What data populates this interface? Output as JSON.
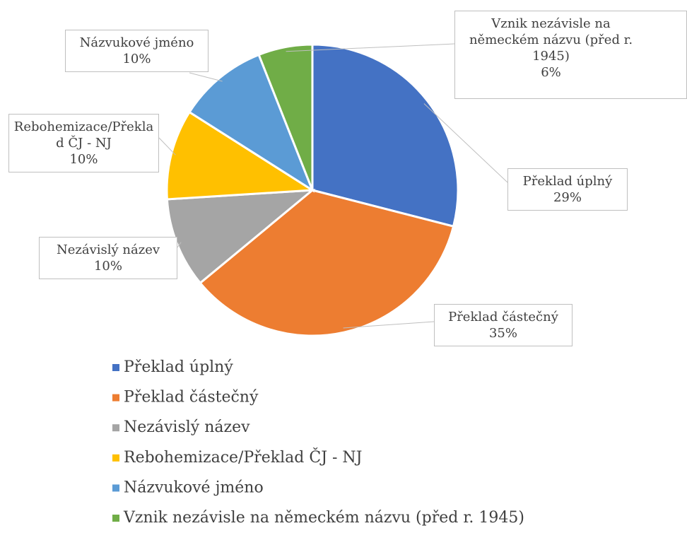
{
  "chart_data": {
    "type": "pie",
    "categories": [
      "Překlad úplný",
      "Překlad částečný",
      "Nezávislý název",
      "Rebohemizace/Překlad ČJ - NJ",
      "Názvukové jméno",
      "Vznik nezávisle na německém názvu (před r. 1945)"
    ],
    "values": [
      29,
      35,
      10,
      10,
      10,
      6
    ],
    "value_labels": [
      "29%",
      "35%",
      "10%",
      "10%",
      "10%",
      "6%"
    ],
    "colors": [
      "#4472c4",
      "#ed7d31",
      "#a5a5a5",
      "#ffc000",
      "#5b9bd5",
      "#70ad47"
    ],
    "legend": "bottom"
  }
}
